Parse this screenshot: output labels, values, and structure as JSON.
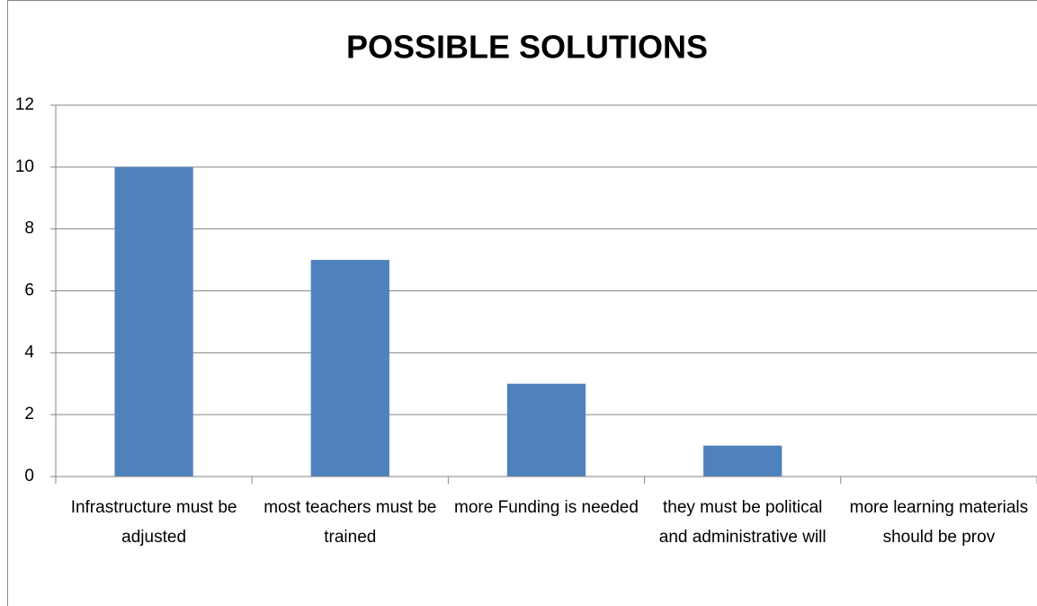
{
  "chart_data": {
    "type": "bar",
    "title": "POSSIBLE SOLUTIONS",
    "categories": [
      "Infrastructure must be adjusted",
      "most teachers must be trained",
      "more Funding is needed",
      "they must be political and administrative will",
      "more learning materials should be prov"
    ],
    "values": [
      10,
      7,
      3,
      1,
      0
    ],
    "color": "#4f81bd",
    "ylim": [
      0,
      12
    ],
    "yticks": [
      0,
      2,
      4,
      6,
      8,
      10,
      12
    ],
    "grid": true
  }
}
